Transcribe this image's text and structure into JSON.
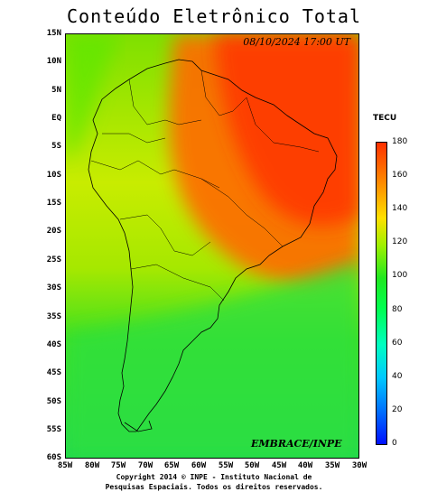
{
  "title": "Conteúdo Eletrônico Total",
  "datetime": "08/10/2024 17:00 UT",
  "credit": "EMBRACE/INPE",
  "colorbar": {
    "unit": "TECU",
    "ticks": [
      "180",
      "160",
      "140",
      "120",
      "100",
      "80",
      "60",
      "40",
      "20",
      "0"
    ],
    "colors": [
      "#0010ff",
      "#00c8ff",
      "#00ff50",
      "#a0f000",
      "#ffe000",
      "#ff3000"
    ]
  },
  "latitude_ticks": [
    "15N",
    "10N",
    "5N",
    "EQ",
    "5S",
    "10S",
    "15S",
    "20S",
    "25S",
    "30S",
    "35S",
    "40S",
    "45S",
    "50S",
    "55S",
    "60S"
  ],
  "longitude_ticks": [
    "85W",
    "80W",
    "75W",
    "70W",
    "65W",
    "60W",
    "55W",
    "50W",
    "45W",
    "40W",
    "35W",
    "30W"
  ],
  "copyright": {
    "line1": "Copyright 2014 © INPE - Instituto Nacional de",
    "line2": "Pesquisas Espaciais. Todos os direitos reservados."
  }
}
